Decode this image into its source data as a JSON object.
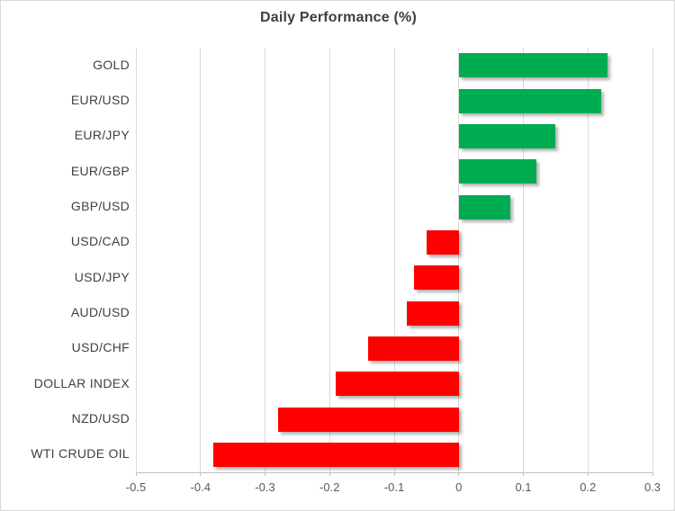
{
  "chart_data": {
    "type": "bar",
    "orientation": "horizontal",
    "title": "Daily Performance (%)",
    "categories": [
      "GOLD",
      "EUR/USD",
      "EUR/JPY",
      "EUR/GBP",
      "GBP/USD",
      "USD/CAD",
      "USD/JPY",
      "AUD/USD",
      "USD/CHF",
      "DOLLAR INDEX",
      "NZD/USD",
      "WTI CRUDE OIL"
    ],
    "values": [
      0.23,
      0.22,
      0.15,
      0.12,
      0.08,
      -0.05,
      -0.07,
      -0.08,
      -0.14,
      -0.19,
      -0.28,
      -0.38
    ],
    "xlabel": "",
    "ylabel": "",
    "xlim": [
      -0.5,
      0.3
    ],
    "xtick_values": [
      -0.5,
      -0.4,
      -0.3,
      -0.2,
      -0.1,
      0,
      0.1,
      0.2,
      0.3
    ],
    "xtick_labels": [
      "-0.5",
      "-0.4",
      "-0.3",
      "-0.2",
      "-0.1",
      "0",
      "0.1",
      "0.2",
      "0.3"
    ],
    "grid": "vertical-major-on",
    "legend": "none",
    "colors": {
      "positive_bar": "#00AC52",
      "negative_bar": "#FF0000",
      "gridline": "#D9D9D9",
      "axis_line": "#BFBFBF",
      "title_text": "#3F3F3F",
      "category_text": "#404040",
      "tick_text": "#595959",
      "background": "#FFFFFF",
      "chart_border": "#D9D9D9"
    }
  }
}
